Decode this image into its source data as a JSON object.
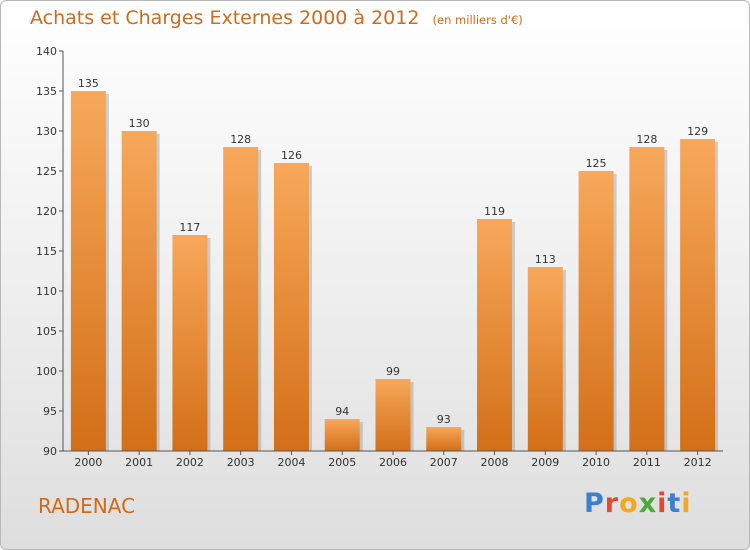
{
  "title": "Achats et Charges Externes 2000 à 2012",
  "subtitle": "(en milliers d'€)",
  "commune": "RADENAC",
  "logo": "Proxiti",
  "colors": {
    "bar_light": "#f7a85a",
    "bar_dark": "#d36f18",
    "accent": "#d06a1a"
  },
  "chart_data": {
    "type": "bar",
    "title": "Achats et Charges Externes 2000 à 2012",
    "subtitle": "(en milliers d'€)",
    "categories": [
      "2000",
      "2001",
      "2002",
      "2003",
      "2004",
      "2005",
      "2006",
      "2007",
      "2008",
      "2009",
      "2010",
      "2011",
      "2012"
    ],
    "values": [
      135,
      130,
      117,
      128,
      126,
      94,
      99,
      93,
      119,
      113,
      125,
      128,
      129
    ],
    "ylim": [
      90,
      140
    ],
    "yticks": [
      90,
      95,
      100,
      105,
      110,
      115,
      120,
      125,
      130,
      135,
      140
    ],
    "grid": false,
    "legend": "none"
  }
}
